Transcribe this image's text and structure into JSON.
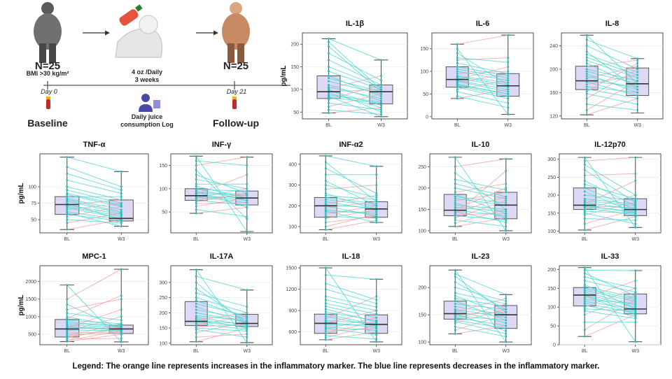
{
  "diagram": {
    "baseline_n": "N=25",
    "baseline_bmi": "BMI >30 kg/m²",
    "day0": "Day 0",
    "baseline_label": "Baseline",
    "dose_line1": "4 oz /Daily",
    "dose_line2": "3 weeks",
    "log_line1": "Daily juice",
    "log_line2": "consumption Log",
    "followup_n": "N=25",
    "day21": "Day 21",
    "followup_label": "Follow-up"
  },
  "legend": "Legend: The orange line represents increases in the inflammatory marker. The blue line represents decreases in the inflammatory marker.",
  "colors": {
    "increase": "#f5a3a3",
    "decrease": "#4fd6d6",
    "box_fill": "#d9d5f3",
    "box_stroke": "#555555"
  },
  "chart_data": [
    {
      "type": "box",
      "title": "IL-1β",
      "ylabel": "pg/mL",
      "categories": [
        "BL",
        "W3"
      ],
      "yticks": [
        50,
        100,
        150,
        200
      ],
      "ylim": [
        35,
        225
      ],
      "boxes": [
        {
          "min": 48,
          "q1": 80,
          "median": 95,
          "q3": 130,
          "max": 212
        },
        {
          "min": 40,
          "q1": 68,
          "median": 95,
          "q3": 110,
          "max": 165
        }
      ],
      "paired": {
        "bl": [
          48,
          55,
          62,
          70,
          78,
          82,
          88,
          92,
          95,
          98,
          102,
          105,
          110,
          118,
          125,
          130,
          140,
          150,
          165,
          180,
          195,
          205,
          212,
          85,
          100
        ],
        "w3": [
          60,
          45,
          90,
          55,
          110,
          70,
          72,
          60,
          100,
          65,
          130,
          80,
          75,
          90,
          95,
          85,
          100,
          105,
          110,
          120,
          95,
          100,
          165,
          40,
          50
        ]
      }
    },
    {
      "type": "box",
      "title": "IL-6",
      "ylabel": "",
      "categories": [
        "BL",
        "W3"
      ],
      "yticks": [
        0,
        50,
        100,
        150
      ],
      "ylim": [
        -5,
        185
      ],
      "boxes": [
        {
          "min": 40,
          "q1": 65,
          "median": 82,
          "q3": 110,
          "max": 160
        },
        {
          "min": 5,
          "q1": 45,
          "median": 68,
          "q3": 95,
          "max": 180
        }
      ],
      "paired": {
        "bl": [
          40,
          45,
          55,
          60,
          65,
          68,
          72,
          75,
          78,
          80,
          82,
          85,
          88,
          90,
          95,
          100,
          105,
          110,
          118,
          125,
          130,
          140,
          150,
          160,
          70
        ],
        "w3": [
          60,
          20,
          30,
          80,
          40,
          45,
          50,
          95,
          55,
          60,
          110,
          65,
          70,
          75,
          100,
          80,
          85,
          90,
          95,
          130,
          120,
          70,
          5,
          180,
          50
        ]
      }
    },
    {
      "type": "box",
      "title": "IL-8",
      "ylabel": "",
      "categories": [
        "BL",
        "W3"
      ],
      "yticks": [
        120,
        160,
        200,
        240
      ],
      "ylim": [
        115,
        262
      ],
      "boxes": [
        {
          "min": 122,
          "q1": 165,
          "median": 180,
          "q3": 205,
          "max": 258
        },
        {
          "min": 125,
          "q1": 155,
          "median": 175,
          "q3": 202,
          "max": 218
        }
      ],
      "paired": {
        "bl": [
          122,
          130,
          140,
          150,
          158,
          162,
          166,
          170,
          174,
          178,
          180,
          184,
          188,
          192,
          196,
          200,
          205,
          210,
          215,
          220,
          225,
          230,
          240,
          250,
          258
        ],
        "w3": [
          150,
          180,
          130,
          200,
          140,
          210,
          150,
          160,
          190,
          155,
          170,
          205,
          165,
          160,
          175,
          180,
          215,
          170,
          185,
          190,
          195,
          165,
          200,
          218,
          175
        ]
      }
    },
    {
      "type": "box",
      "title": "TNF-α",
      "ylabel": "pg/mL",
      "categories": [
        "BL",
        "W3"
      ],
      "yticks": [
        50,
        75,
        100
      ],
      "ylim": [
        30,
        150
      ],
      "boxes": [
        {
          "min": 35,
          "q1": 58,
          "median": 73,
          "q3": 85,
          "max": 145
        },
        {
          "min": 40,
          "q1": 48,
          "median": 52,
          "q3": 80,
          "max": 123
        }
      ],
      "paired": {
        "bl": [
          35,
          45,
          50,
          55,
          58,
          62,
          65,
          68,
          70,
          72,
          73,
          75,
          78,
          80,
          82,
          85,
          88,
          90,
          95,
          100,
          110,
          120,
          130,
          145,
          60
        ],
        "w3": [
          50,
          60,
          45,
          70,
          48,
          50,
          75,
          52,
          55,
          58,
          80,
          50,
          60,
          62,
          65,
          85,
          70,
          72,
          75,
          80,
          90,
          95,
          100,
          123,
          40
        ]
      }
    },
    {
      "type": "box",
      "title": "INF-γ",
      "ylabel": "",
      "categories": [
        "BL",
        "W3"
      ],
      "yticks": [
        50,
        100,
        150
      ],
      "ylim": [
        5,
        175
      ],
      "boxes": [
        {
          "min": 47,
          "q1": 75,
          "median": 85,
          "q3": 100,
          "max": 170
        },
        {
          "min": 8,
          "q1": 65,
          "median": 80,
          "q3": 95,
          "max": 168
        }
      ],
      "paired": {
        "bl": [
          47,
          55,
          62,
          68,
          72,
          75,
          78,
          80,
          82,
          84,
          85,
          88,
          90,
          92,
          95,
          98,
          100,
          105,
          110,
          120,
          130,
          140,
          150,
          170,
          160
        ],
        "w3": [
          60,
          40,
          80,
          70,
          90,
          65,
          85,
          100,
          70,
          75,
          80,
          130,
          85,
          88,
          60,
          95,
          75,
          80,
          110,
          100,
          90,
          35,
          168,
          8,
          150
        ]
      }
    },
    {
      "type": "box",
      "title": "INF-α2",
      "ylabel": "",
      "categories": [
        "BL",
        "W3"
      ],
      "yticks": [
        100,
        200,
        300,
        400
      ],
      "ylim": [
        70,
        450
      ],
      "boxes": [
        {
          "min": 85,
          "q1": 145,
          "median": 200,
          "q3": 240,
          "max": 440
        },
        {
          "min": 120,
          "q1": 145,
          "median": 185,
          "q3": 220,
          "max": 390
        }
      ],
      "paired": {
        "bl": [
          85,
          100,
          120,
          140,
          150,
          160,
          170,
          180,
          190,
          200,
          205,
          210,
          220,
          230,
          240,
          250,
          260,
          280,
          300,
          320,
          350,
          380,
          410,
          440,
          175
        ],
        "w3": [
          130,
          160,
          150,
          180,
          140,
          200,
          170,
          160,
          220,
          150,
          190,
          250,
          180,
          200,
          210,
          230,
          180,
          300,
          240,
          200,
          350,
          260,
          220,
          390,
          120
        ]
      }
    },
    {
      "type": "box",
      "title": "IL-10",
      "ylabel": "",
      "categories": [
        "BL",
        "W3"
      ],
      "yticks": [
        100,
        150,
        200,
        250
      ],
      "ylim": [
        95,
        280
      ],
      "boxes": [
        {
          "min": 110,
          "q1": 135,
          "median": 148,
          "q3": 185,
          "max": 272
        },
        {
          "min": 100,
          "q1": 128,
          "median": 160,
          "q3": 190,
          "max": 268
        }
      ],
      "paired": {
        "bl": [
          110,
          118,
          125,
          130,
          135,
          138,
          142,
          145,
          148,
          150,
          155,
          160,
          165,
          170,
          175,
          180,
          185,
          190,
          200,
          210,
          220,
          235,
          250,
          272,
          140
        ],
        "w3": [
          130,
          150,
          110,
          170,
          125,
          140,
          180,
          120,
          135,
          200,
          145,
          150,
          130,
          190,
          160,
          165,
          140,
          210,
          175,
          180,
          195,
          150,
          268,
          100,
          240
        ]
      }
    },
    {
      "type": "box",
      "title": "IL-12p70",
      "ylabel": "",
      "categories": [
        "BL",
        "W3"
      ],
      "yticks": [
        100,
        150,
        200,
        250,
        300
      ],
      "ylim": [
        95,
        315
      ],
      "boxes": [
        {
          "min": 103,
          "q1": 160,
          "median": 172,
          "q3": 220,
          "max": 305
        },
        {
          "min": 110,
          "q1": 143,
          "median": 160,
          "q3": 190,
          "max": 305
        }
      ],
      "paired": {
        "bl": [
          103,
          120,
          135,
          145,
          155,
          160,
          165,
          168,
          170,
          172,
          175,
          180,
          185,
          190,
          200,
          210,
          220,
          230,
          240,
          255,
          270,
          285,
          295,
          305,
          150
        ],
        "w3": [
          140,
          160,
          130,
          180,
          150,
          200,
          145,
          155,
          165,
          150,
          240,
          160,
          170,
          175,
          185,
          150,
          160,
          190,
          170,
          260,
          180,
          200,
          305,
          110,
          120
        ]
      }
    },
    {
      "type": "box",
      "title": "MPC-1",
      "ylabel": "pg/mL",
      "categories": [
        "BL",
        "W3"
      ],
      "yticks": [
        500,
        1000,
        1500,
        2000
      ],
      "ylim": [
        200,
        2450
      ],
      "boxes": [
        {
          "min": 290,
          "q1": 420,
          "median": 650,
          "q3": 920,
          "max": 1900
        },
        {
          "min": 280,
          "q1": 520,
          "median": 650,
          "q3": 760,
          "max": 2350
        }
      ],
      "paired": {
        "bl": [
          290,
          320,
          360,
          400,
          430,
          460,
          500,
          540,
          580,
          620,
          650,
          680,
          720,
          760,
          800,
          850,
          900,
          950,
          1000,
          1100,
          1200,
          1350,
          1500,
          1900,
          700
        ],
        "w3": [
          500,
          600,
          380,
          700,
          650,
          800,
          520,
          560,
          1000,
          600,
          680,
          1200,
          640,
          700,
          750,
          720,
          800,
          1600,
          700,
          900,
          1500,
          650,
          2350,
          280,
          620
        ]
      }
    },
    {
      "type": "box",
      "title": "IL-17A",
      "ylabel": "",
      "categories": [
        "BL",
        "W3"
      ],
      "yticks": [
        100,
        150,
        200,
        250,
        300
      ],
      "ylim": [
        95,
        355
      ],
      "boxes": [
        {
          "min": 105,
          "q1": 158,
          "median": 172,
          "q3": 237,
          "max": 342
        },
        {
          "min": 102,
          "q1": 155,
          "median": 165,
          "q3": 195,
          "max": 275
        }
      ],
      "paired": {
        "bl": [
          105,
          120,
          135,
          145,
          155,
          160,
          165,
          170,
          172,
          175,
          180,
          185,
          190,
          200,
          210,
          220,
          230,
          240,
          250,
          265,
          280,
          300,
          320,
          342,
          150
        ],
        "w3": [
          150,
          130,
          170,
          120,
          160,
          190,
          145,
          155,
          165,
          200,
          150,
          160,
          175,
          170,
          180,
          165,
          190,
          185,
          200,
          220,
          170,
          160,
          275,
          102,
          140
        ]
      }
    },
    {
      "type": "box",
      "title": "IL-18",
      "ylabel": "",
      "categories": [
        "BL",
        "W3"
      ],
      "yticks": [
        600,
        900,
        1200,
        1500
      ],
      "ylim": [
        420,
        1530
      ],
      "boxes": [
        {
          "min": 490,
          "q1": 580,
          "median": 720,
          "q3": 850,
          "max": 1500
        },
        {
          "min": 460,
          "q1": 580,
          "median": 705,
          "q3": 840,
          "max": 1340
        }
      ],
      "paired": {
        "bl": [
          490,
          520,
          550,
          580,
          610,
          640,
          670,
          700,
          720,
          740,
          760,
          790,
          820,
          850,
          880,
          920,
          960,
          1000,
          1050,
          1100,
          1200,
          1280,
          1400,
          1500,
          650
        ],
        "w3": [
          600,
          700,
          500,
          750,
          650,
          800,
          620,
          700,
          900,
          660,
          720,
          1100,
          680,
          700,
          760,
          740,
          800,
          850,
          900,
          950,
          1000,
          1050,
          1340,
          460,
          560
        ]
      }
    },
    {
      "type": "box",
      "title": "IL-23",
      "ylabel": "",
      "categories": [
        "BL",
        "W3"
      ],
      "yticks": [
        100,
        150,
        200
      ],
      "ylim": [
        95,
        240
      ],
      "boxes": [
        {
          "min": 115,
          "q1": 142,
          "median": 152,
          "q3": 175,
          "max": 232
        },
        {
          "min": 100,
          "q1": 125,
          "median": 150,
          "q3": 167,
          "max": 187
        }
      ],
      "paired": {
        "bl": [
          115,
          122,
          128,
          135,
          140,
          142,
          145,
          148,
          150,
          152,
          155,
          158,
          160,
          165,
          170,
          175,
          180,
          185,
          190,
          200,
          210,
          220,
          225,
          232,
          138
        ],
        "w3": [
          130,
          150,
          110,
          160,
          125,
          170,
          130,
          140,
          155,
          120,
          180,
          135,
          145,
          150,
          160,
          140,
          165,
          150,
          170,
          175,
          160,
          155,
          187,
          100,
          115
        ]
      }
    },
    {
      "type": "box",
      "title": "IL-33",
      "ylabel": "",
      "categories": [
        "BL",
        "W3"
      ],
      "yticks": [
        0,
        50,
        100,
        150,
        200
      ],
      "ylim": [
        0,
        210
      ],
      "boxes": [
        {
          "min": 22,
          "q1": 103,
          "median": 132,
          "q3": 152,
          "max": 205
        },
        {
          "min": 8,
          "q1": 82,
          "median": 95,
          "q3": 135,
          "max": 197
        }
      ],
      "paired": {
        "bl": [
          22,
          40,
          60,
          80,
          95,
          100,
          105,
          110,
          115,
          120,
          125,
          130,
          132,
          135,
          140,
          145,
          150,
          155,
          160,
          170,
          180,
          190,
          198,
          205,
          90
        ],
        "w3": [
          80,
          120,
          60,
          130,
          90,
          150,
          75,
          85,
          95,
          110,
          170,
          80,
          90,
          100,
          105,
          115,
          120,
          125,
          95,
          140,
          150,
          130,
          197,
          8,
          70
        ]
      }
    }
  ]
}
